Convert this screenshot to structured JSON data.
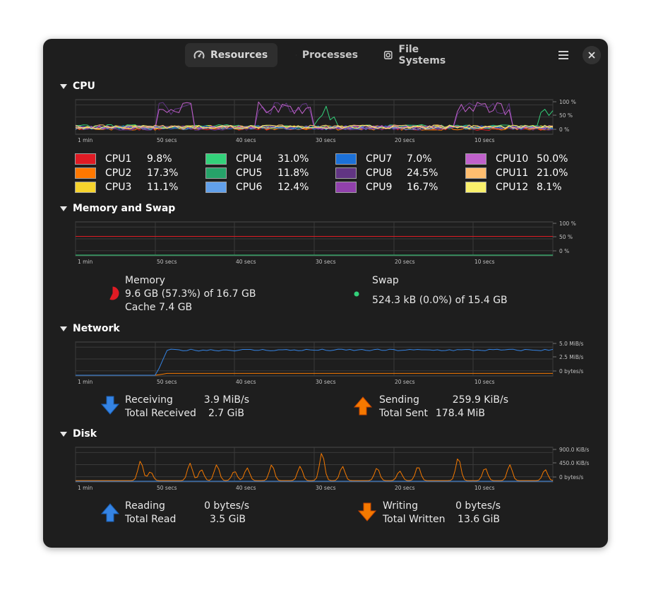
{
  "header": {
    "tabs": [
      {
        "label": "Resources",
        "icon": "gauge-icon"
      },
      {
        "label": "Processes",
        "icon": "play-icon"
      },
      {
        "label": "File Systems",
        "icon": "disk-icon"
      }
    ],
    "active_tab": "Resources"
  },
  "colors": {
    "window_bg": "#1e1e1e",
    "graph_grid": "#3a3a3a",
    "graph_frame": "#555555"
  },
  "time_ticks": [
    "1 min",
    "50 secs",
    "40 secs",
    "30 secs",
    "20 secs",
    "10 secs"
  ],
  "cpu": {
    "title": "CPU",
    "axis_labels": [
      "100 %",
      "50 %",
      "0 %"
    ],
    "cores": [
      {
        "name": "CPU1",
        "value": "9.8%",
        "color": "#e01b24"
      },
      {
        "name": "CPU2",
        "value": "17.3%",
        "color": "#ff7800"
      },
      {
        "name": "CPU3",
        "value": "11.1%",
        "color": "#f6d32d"
      },
      {
        "name": "CPU4",
        "value": "31.0%",
        "color": "#33d17a"
      },
      {
        "name": "CPU5",
        "value": "11.8%",
        "color": "#26a269"
      },
      {
        "name": "CPU6",
        "value": "12.4%",
        "color": "#62a0ea"
      },
      {
        "name": "CPU7",
        "value": "7.0%",
        "color": "#1c71d8"
      },
      {
        "name": "CPU8",
        "value": "24.5%",
        "color": "#613583"
      },
      {
        "name": "CPU9",
        "value": "16.7%",
        "color": "#9141ac"
      },
      {
        "name": "CPU10",
        "value": "50.0%",
        "color": "#c061cb"
      },
      {
        "name": "CPU11",
        "value": "21.0%",
        "color": "#ffbe6f"
      },
      {
        "name": "CPU12",
        "value": "8.1%",
        "color": "#f9f06b"
      }
    ]
  },
  "memory": {
    "title": "Memory and Swap",
    "axis_labels": [
      "100 %",
      "50 %",
      "0 %"
    ],
    "memory_label": "Memory",
    "memory_usage": "9.6 GB (57.3%) of 16.7 GB",
    "memory_cache": "Cache 7.4 GB",
    "memory_fraction": 0.573,
    "memory_color": "#e01b24",
    "swap_label": "Swap",
    "swap_usage": "524.3 kB (0.0%) of 15.4 GB",
    "swap_fraction": 0.0,
    "swap_color": "#33d17a"
  },
  "network": {
    "title": "Network",
    "axis_labels": [
      "5.0 MiB/s",
      "2.5 MiB/s",
      "0 bytes/s"
    ],
    "receiving_label": "Receiving",
    "receiving_value": "3.9 MiB/s",
    "total_received_label": "Total Received",
    "total_received_value": "2.7 GiB",
    "sending_label": "Sending",
    "sending_value": "259.9 KiB/s",
    "total_sent_label": "Total Sent",
    "total_sent_value": "178.4 MiB",
    "receive_color": "#3584e4",
    "send_color": "#f57900"
  },
  "disk": {
    "title": "Disk",
    "axis_labels": [
      "900.0 KiB/s",
      "450.0 KiB/s",
      "0 bytes/s"
    ],
    "reading_label": "Reading",
    "reading_value": "0 bytes/s",
    "total_read_label": "Total Read",
    "total_read_value": "3.5 GiB",
    "writing_label": "Writing",
    "writing_value": "0 bytes/s",
    "total_written_label": "Total Written",
    "total_written_value": "13.6 GiB",
    "read_color": "#3584e4",
    "write_color": "#f57900"
  }
}
